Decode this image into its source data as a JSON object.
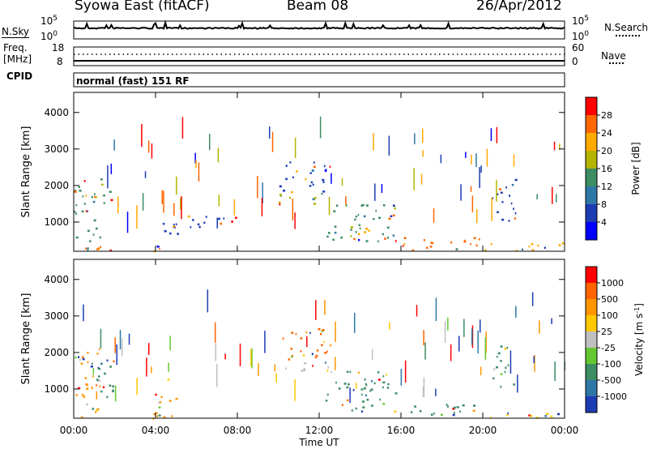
{
  "header": {
    "station": "Syowa East (fitACF)",
    "beam": "Beam 08",
    "date": "26/Apr/2012"
  },
  "noise_panel": {
    "left_label": "N.Sky",
    "right_label": "N.Search",
    "tick_top": "10^5",
    "tick_bottom": "10^0"
  },
  "freq_panel": {
    "left_label_1": "Freq.",
    "left_label_2": "[MHz]",
    "right_label": "Nave",
    "left_ticks": [
      "18",
      "8"
    ],
    "right_ticks": [
      "60",
      "0"
    ]
  },
  "cpid": {
    "label": "CPID",
    "mode": "normal (fast) 151 RF"
  },
  "chart_data": [
    {
      "type": "heatmap",
      "name": "power",
      "ylabel": "Slant Range [km]",
      "xlabel": "",
      "x_ticks": [
        "00:00",
        "04:00",
        "08:00",
        "12:00",
        "16:00",
        "20:00",
        "00:00"
      ],
      "y_ticks": [
        1000,
        2000,
        3000,
        4000
      ],
      "ylim": [
        200,
        4550
      ],
      "xlim_hours": [
        0,
        24
      ],
      "colorbar": {
        "label": "Power [dB]",
        "ticks": [
          "28",
          "24",
          "20",
          "16",
          "12",
          "8",
          "4"
        ],
        "colors": [
          "#0000ff",
          "#1c3cb4",
          "#2e78a8",
          "#3c8c64",
          "#b4b400",
          "#ffaa00",
          "#ff6600",
          "#ff0000"
        ]
      },
      "regions": [
        {
          "t0": 0.0,
          "t1": 1.4,
          "r0": 250,
          "r1": 2200,
          "c": "#3c8c64"
        },
        {
          "t0": 1.4,
          "t1": 2.0,
          "r0": 1300,
          "r1": 1900,
          "c": "#3c8c64"
        },
        {
          "t0": 0.3,
          "t1": 2.5,
          "r0": 200,
          "r1": 450,
          "c": "#ff6600"
        },
        {
          "t0": 3.8,
          "t1": 5.0,
          "r0": 200,
          "r1": 450,
          "c": "#ff6600"
        },
        {
          "t0": 4.3,
          "t1": 8.0,
          "r0": 700,
          "r1": 1200,
          "c": "#1c3cb4"
        },
        {
          "t0": 10.0,
          "t1": 12.6,
          "r0": 1500,
          "r1": 1800,
          "c": "#b4b400"
        },
        {
          "t0": 10.0,
          "t1": 12.6,
          "r0": 1800,
          "r1": 2700,
          "c": "#1c3cb4"
        },
        {
          "t0": 12.3,
          "t1": 15.8,
          "r0": 500,
          "r1": 1500,
          "c": "#3c8c64"
        },
        {
          "t0": 13.5,
          "t1": 15.0,
          "r0": 600,
          "r1": 900,
          "c": "#ffaa00"
        },
        {
          "t0": 15.5,
          "t1": 20.0,
          "r0": 250,
          "r1": 600,
          "c": "#ff6600"
        },
        {
          "t0": 20.0,
          "t1": 24.0,
          "r0": 200,
          "r1": 450,
          "c": "#ffaa00"
        },
        {
          "t0": 20.4,
          "t1": 21.6,
          "r0": 1000,
          "r1": 2200,
          "c": "#1c3cb4"
        }
      ]
    },
    {
      "type": "heatmap",
      "name": "velocity",
      "ylabel": "Slant Range [km]",
      "xlabel": "Time UT",
      "x_ticks": [
        "00:00",
        "04:00",
        "08:00",
        "12:00",
        "16:00",
        "20:00",
        "00:00"
      ],
      "y_ticks": [
        1000,
        2000,
        3000,
        4000
      ],
      "ylim": [
        200,
        4550
      ],
      "xlim_hours": [
        0,
        24
      ],
      "colorbar": {
        "label": "Velocity [m s^-1]",
        "ticks": [
          "1000",
          "500",
          "100",
          "25",
          "-25",
          "-100",
          "-500",
          "-1000"
        ],
        "colors": [
          "#1c3cb4",
          "#2e78a8",
          "#3c8c64",
          "#64c832",
          "#c0c0c0",
          "#ffc800",
          "#ff9600",
          "#ff6400",
          "#ff0000"
        ]
      },
      "regions": [
        {
          "t0": 0.0,
          "t1": 1.4,
          "r0": 250,
          "r1": 2200,
          "c": "#ff9600"
        },
        {
          "t0": 0.6,
          "t1": 2.0,
          "r0": 800,
          "r1": 1900,
          "c": "#3c8c64"
        },
        {
          "t0": 3.8,
          "t1": 5.0,
          "r0": 200,
          "r1": 1300,
          "c": "#ff9600"
        },
        {
          "t0": 10.0,
          "t1": 12.6,
          "r0": 1500,
          "r1": 1800,
          "c": "#c0c0c0"
        },
        {
          "t0": 10.0,
          "t1": 12.6,
          "r0": 1800,
          "r1": 2700,
          "c": "#ff6400"
        },
        {
          "t0": 12.3,
          "t1": 15.8,
          "r0": 400,
          "r1": 1500,
          "c": "#3c8c64"
        },
        {
          "t0": 15.5,
          "t1": 20.0,
          "r0": 250,
          "r1": 600,
          "c": "#3c8c64"
        },
        {
          "t0": 20.0,
          "t1": 24.0,
          "r0": 200,
          "r1": 450,
          "c": "#ffc800"
        },
        {
          "t0": 20.4,
          "t1": 21.6,
          "r0": 1000,
          "r1": 2200,
          "c": "#3c8c64"
        }
      ]
    }
  ]
}
